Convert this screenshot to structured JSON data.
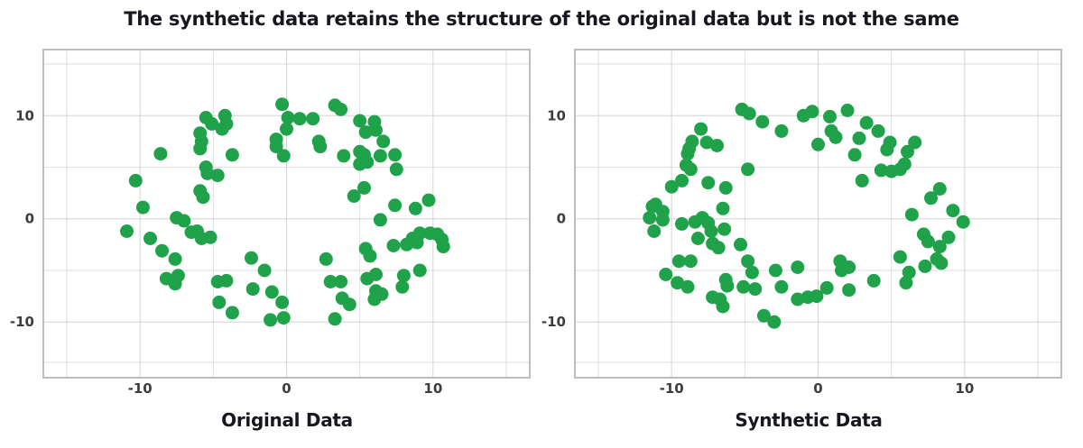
{
  "figure": {
    "title": "The synthetic data retains the structure of the original data but is not the same"
  },
  "style": {
    "dot_color": "#20A24A",
    "dot_radius": 7.5,
    "grid_major_color": "#d2d2d2",
    "grid_minor_color": "#dedede",
    "border_color": "#bdbdbd",
    "tick_text_color": "#3d3d3d",
    "title_color": "#17171f",
    "background": "#ffffff"
  },
  "chart_data": [
    {
      "type": "scatter",
      "title": "Original Data",
      "xlabel": "",
      "ylabel": "",
      "x_ticks": [
        -10,
        0,
        10
      ],
      "y_ticks": [
        10,
        0,
        -10
      ],
      "x_minor": [
        -15,
        -5,
        5,
        15
      ],
      "y_minor": [
        15,
        5,
        -5,
        -13.9
      ],
      "xlim": [
        -16.6,
        16.6
      ],
      "ylim": [
        -15.4,
        16.4
      ],
      "grid": true,
      "legend": false,
      "series": [
        {
          "name": "original-points",
          "points": [
            [
              -5.5,
              9.8
            ],
            [
              -5.1,
              9.2
            ],
            [
              -4.2,
              10.0
            ],
            [
              -4.1,
              9.2
            ],
            [
              -4.4,
              8.7
            ],
            [
              -5.9,
              8.3
            ],
            [
              -5.8,
              7.5
            ],
            [
              -5.9,
              6.8
            ],
            [
              -8.6,
              6.3
            ],
            [
              -3.7,
              6.2
            ],
            [
              -5.5,
              5.0
            ],
            [
              -5.4,
              4.4
            ],
            [
              -4.7,
              4.2
            ],
            [
              -10.3,
              3.7
            ],
            [
              -9.8,
              1.1
            ],
            [
              -5.9,
              2.7
            ],
            [
              -5.7,
              2.1
            ],
            [
              -0.3,
              11.1
            ],
            [
              0.1,
              9.8
            ],
            [
              0.0,
              8.7
            ],
            [
              -0.7,
              7.7
            ],
            [
              -0.7,
              7.0
            ],
            [
              -0.2,
              6.1
            ],
            [
              3.3,
              11.0
            ],
            [
              3.7,
              10.6
            ],
            [
              0.9,
              9.7
            ],
            [
              1.8,
              9.7
            ],
            [
              5.0,
              9.5
            ],
            [
              6.0,
              9.4
            ],
            [
              5.4,
              8.4
            ],
            [
              6.1,
              8.6
            ],
            [
              2.2,
              7.5
            ],
            [
              2.3,
              7.0
            ],
            [
              6.6,
              7.5
            ],
            [
              5.0,
              6.5
            ],
            [
              5.3,
              6.2
            ],
            [
              5.5,
              5.5
            ],
            [
              5.0,
              5.3
            ],
            [
              3.9,
              6.1
            ],
            [
              6.4,
              6.1
            ],
            [
              7.4,
              6.2
            ],
            [
              7.5,
              4.8
            ],
            [
              5.3,
              3.0
            ],
            [
              4.6,
              2.2
            ],
            [
              7.4,
              1.3
            ],
            [
              8.8,
              1.0
            ],
            [
              9.7,
              1.8
            ],
            [
              6.4,
              -0.1
            ],
            [
              -10.9,
              -1.2
            ],
            [
              -9.3,
              -1.9
            ],
            [
              -7.5,
              0.1
            ],
            [
              -7.0,
              -0.2
            ],
            [
              -6.5,
              -1.3
            ],
            [
              -6.1,
              -1.2
            ],
            [
              -5.8,
              -1.9
            ],
            [
              -5.2,
              -1.8
            ],
            [
              -8.5,
              -3.1
            ],
            [
              -7.6,
              -3.9
            ],
            [
              -8.2,
              -5.8
            ],
            [
              -7.4,
              -5.5
            ],
            [
              -7.6,
              -6.3
            ],
            [
              -4.7,
              -6.1
            ],
            [
              -4.1,
              -6.0
            ],
            [
              -4.6,
              -8.1
            ],
            [
              -3.7,
              -9.1
            ],
            [
              -2.4,
              -3.8
            ],
            [
              -1.5,
              -5.0
            ],
            [
              -2.3,
              -6.8
            ],
            [
              -1.0,
              -7.1
            ],
            [
              -0.3,
              -8.1
            ],
            [
              -1.1,
              -9.8
            ],
            [
              -0.2,
              -9.6
            ],
            [
              7.3,
              -2.6
            ],
            [
              8.2,
              -2.5
            ],
            [
              8.6,
              -1.9
            ],
            [
              9.1,
              -1.4
            ],
            [
              8.9,
              -2.3
            ],
            [
              9.8,
              -1.4
            ],
            [
              10.3,
              -1.5
            ],
            [
              10.6,
              -2.0
            ],
            [
              10.7,
              -2.7
            ],
            [
              5.4,
              -2.9
            ],
            [
              5.7,
              -3.6
            ],
            [
              2.7,
              -3.9
            ],
            [
              3.0,
              -6.1
            ],
            [
              3.7,
              -6.1
            ],
            [
              5.5,
              -5.8
            ],
            [
              6.1,
              -5.4
            ],
            [
              8.0,
              -5.5
            ],
            [
              9.1,
              -5.0
            ],
            [
              7.9,
              -6.6
            ],
            [
              6.1,
              -7.0
            ],
            [
              6.5,
              -7.3
            ],
            [
              6.0,
              -7.8
            ],
            [
              3.8,
              -7.7
            ],
            [
              4.3,
              -8.3
            ],
            [
              3.3,
              -9.7
            ]
          ]
        }
      ]
    },
    {
      "type": "scatter",
      "title": "Synthetic Data",
      "xlabel": "",
      "ylabel": "",
      "x_ticks": [
        -10,
        0,
        10
      ],
      "y_ticks": [
        10,
        0,
        -10
      ],
      "x_minor": [
        -15,
        -5,
        5,
        15
      ],
      "y_minor": [
        15,
        5,
        -5,
        -13.9
      ],
      "xlim": [
        -16.6,
        16.6
      ],
      "ylim": [
        -15.4,
        16.4
      ],
      "grid": true,
      "legend": false,
      "series": [
        {
          "name": "synthetic-points",
          "points": [
            [
              -5.2,
              10.6
            ],
            [
              -4.7,
              10.2
            ],
            [
              -3.8,
              9.4
            ],
            [
              -2.5,
              8.5
            ],
            [
              -1.0,
              10.0
            ],
            [
              -0.4,
              10.4
            ],
            [
              -8.0,
              8.7
            ],
            [
              -8.6,
              7.5
            ],
            [
              -8.8,
              6.8
            ],
            [
              -8.9,
              6.3
            ],
            [
              -7.6,
              7.4
            ],
            [
              -6.9,
              7.1
            ],
            [
              -9.0,
              5.2
            ],
            [
              -8.7,
              4.8
            ],
            [
              -4.8,
              4.8
            ],
            [
              -10.0,
              3.1
            ],
            [
              -9.3,
              3.7
            ],
            [
              -7.5,
              3.5
            ],
            [
              -6.3,
              3.0
            ],
            [
              -6.5,
              1.0
            ],
            [
              -11.3,
              1.2
            ],
            [
              -11.1,
              1.4
            ],
            [
              -10.6,
              0.7
            ],
            [
              -11.5,
              0.1
            ],
            [
              -10.6,
              -0.1
            ],
            [
              -11.2,
              -1.2
            ],
            [
              -9.3,
              -0.5
            ],
            [
              -8.4,
              -0.3
            ],
            [
              -7.9,
              0.1
            ],
            [
              -7.5,
              -0.4
            ],
            [
              -7.3,
              -1.2
            ],
            [
              -6.4,
              -1.0
            ],
            [
              -8.2,
              -1.9
            ],
            [
              -7.2,
              -2.4
            ],
            [
              -6.8,
              -2.8
            ],
            [
              -5.3,
              -2.5
            ],
            [
              -9.5,
              -4.1
            ],
            [
              -8.7,
              -4.1
            ],
            [
              -10.4,
              -5.4
            ],
            [
              -9.6,
              -6.2
            ],
            [
              -8.9,
              -6.6
            ],
            [
              -4.8,
              -4.1
            ],
            [
              -4.5,
              -5.2
            ],
            [
              -6.3,
              -5.9
            ],
            [
              -6.2,
              -6.5
            ],
            [
              -7.2,
              -7.6
            ],
            [
              -6.7,
              -7.8
            ],
            [
              -6.5,
              -8.5
            ],
            [
              -5.1,
              -6.6
            ],
            [
              -4.3,
              -6.8
            ],
            [
              -2.9,
              -5.0
            ],
            [
              -1.4,
              -4.7
            ],
            [
              -2.5,
              -6.6
            ],
            [
              -1.4,
              -7.8
            ],
            [
              -0.7,
              -7.6
            ],
            [
              -3.7,
              -9.4
            ],
            [
              -3.0,
              -10.0
            ],
            [
              2.0,
              10.5
            ],
            [
              0.8,
              9.9
            ],
            [
              3.3,
              9.3
            ],
            [
              0.9,
              8.5
            ],
            [
              1.2,
              7.9
            ],
            [
              0.0,
              7.2
            ],
            [
              2.8,
              7.8
            ],
            [
              4.1,
              8.5
            ],
            [
              4.9,
              7.4
            ],
            [
              4.7,
              6.7
            ],
            [
              2.5,
              6.2
            ],
            [
              6.6,
              7.4
            ],
            [
              6.1,
              6.5
            ],
            [
              4.3,
              4.7
            ],
            [
              5.0,
              4.6
            ],
            [
              5.6,
              4.8
            ],
            [
              5.9,
              5.3
            ],
            [
              3.0,
              3.7
            ],
            [
              8.3,
              2.9
            ],
            [
              7.7,
              2.0
            ],
            [
              6.4,
              0.4
            ],
            [
              9.2,
              0.8
            ],
            [
              9.9,
              -0.3
            ],
            [
              7.2,
              -1.5
            ],
            [
              7.5,
              -2.2
            ],
            [
              8.9,
              -1.8
            ],
            [
              8.3,
              -2.7
            ],
            [
              8.1,
              -3.9
            ],
            [
              8.4,
              -4.3
            ],
            [
              5.6,
              -3.7
            ],
            [
              7.3,
              -4.6
            ],
            [
              6.2,
              -5.2
            ],
            [
              6.0,
              -6.2
            ],
            [
              3.8,
              -6.0
            ],
            [
              0.6,
              -6.7
            ],
            [
              1.5,
              -4.1
            ],
            [
              1.6,
              -5.0
            ],
            [
              2.1,
              -4.7
            ],
            [
              2.1,
              -6.9
            ],
            [
              -0.1,
              -7.5
            ]
          ]
        }
      ]
    }
  ]
}
